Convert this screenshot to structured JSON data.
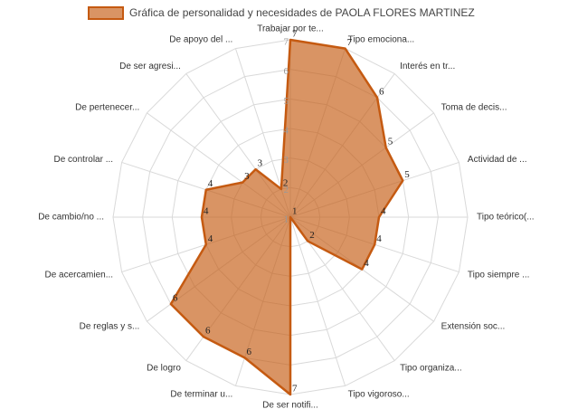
{
  "chart_data": {
    "type": "radar",
    "categories": [
      "Trabajar por te...",
      "Tipo emociona...",
      "Interés en tr...",
      "Toma de decis...",
      "Actividad de ...",
      "Tipo teórico(...",
      "Tipo siempre ...",
      "Extensión soc...",
      "Tipo organiza...",
      "Tipo vigoroso...",
      "De ser notifi...",
      "De terminar u...",
      "De logro",
      "De reglas y s...",
      "De acercamien...",
      "De cambio/no ...",
      "De controlar ...",
      "De pertenecer...",
      "De ser agresi...",
      "De apoyo del ..."
    ],
    "series": [
      {
        "name": "Gráfica de personalidad y necesidades de PAOLA FLORES MARTINEZ",
        "color": "#c55a11",
        "values": [
          7,
          7,
          6,
          5,
          5,
          4,
          4,
          4,
          2,
          1,
          7,
          6,
          6,
          6,
          4,
          4,
          4,
          3,
          3,
          2
        ]
      }
    ],
    "rlim": [
      1,
      7
    ],
    "rticks": [
      1,
      2,
      3,
      4,
      5,
      6,
      7
    ],
    "grid": true,
    "legend": "top"
  }
}
